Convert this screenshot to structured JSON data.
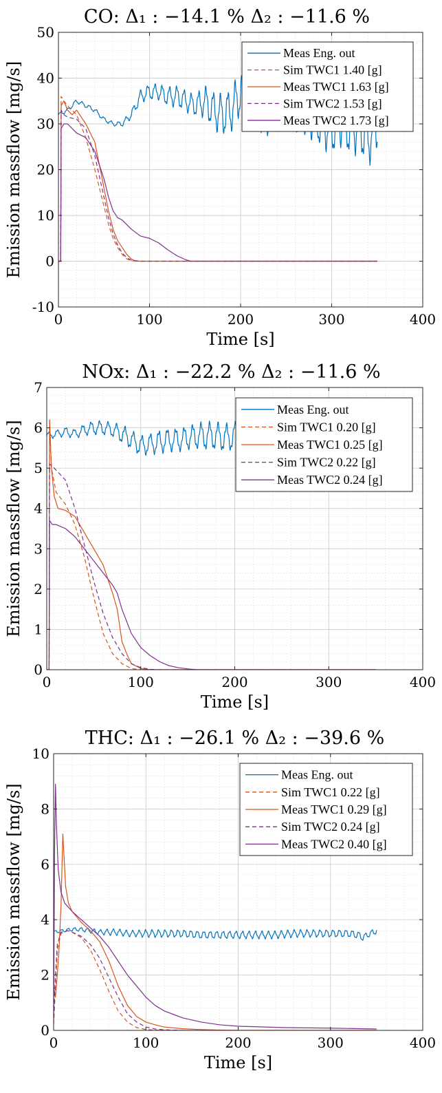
{
  "chart_data": [
    {
      "type": "line",
      "title": "CO: Δ₁ : −14.1 % Δ₂ : −11.6 %",
      "xlabel": "Time [s]",
      "ylabel": "Emission massflow [mg/s]",
      "xlim": [
        0,
        400
      ],
      "ylim": [
        -10,
        50
      ],
      "xticks": [
        "0",
        "100",
        "200",
        "300",
        "400"
      ],
      "yticks": [
        "-10",
        "0",
        "10",
        "20",
        "30",
        "40",
        "50"
      ],
      "grid": true,
      "legend_position": "top-right",
      "series": [
        {
          "name": "Meas Eng. out",
          "color": "#0072BD",
          "style": "solid",
          "x": [
            0,
            10,
            20,
            30,
            40,
            50,
            60,
            70,
            80,
            90,
            100,
            110,
            120,
            130,
            140,
            150,
            160,
            170,
            180,
            190,
            200,
            210,
            220,
            230,
            240,
            250,
            260,
            270,
            280,
            290,
            300,
            310,
            320,
            330,
            340,
            350
          ],
          "y": [
            32,
            33,
            35,
            34,
            33,
            31,
            30,
            30,
            32,
            36,
            37,
            37,
            36,
            36,
            35,
            34,
            35,
            33,
            32,
            33,
            37,
            34,
            33,
            32,
            34,
            33,
            33,
            32,
            31,
            30,
            29,
            31,
            29,
            30,
            27,
            30
          ],
          "amp": [
            0.3,
            0.4,
            0.4,
            0.4,
            0.4,
            0.4,
            0.4,
            0.5,
            0.8,
            1.2,
            1.5,
            1.5,
            1.8,
            2,
            2,
            2,
            3,
            3.5,
            4,
            4,
            4.5,
            4,
            4,
            4,
            4,
            4,
            4,
            4,
            4,
            4.5,
            5,
            5,
            5,
            5.5,
            5.5,
            5
          ],
          "period": 8
        },
        {
          "name": "Sim TWC1 1.40 [g]",
          "color": "#D95319",
          "style": "dashed",
          "x": [
            0,
            2.5,
            3,
            6,
            10,
            20,
            30,
            40,
            50,
            55,
            60,
            65,
            70,
            75,
            80,
            90,
            100,
            350
          ],
          "y": [
            0,
            0,
            36,
            35,
            34,
            32,
            27,
            20,
            12,
            8,
            5,
            3,
            1.5,
            0.5,
            0.1,
            0,
            0,
            0
          ]
        },
        {
          "name": "Meas TWC1 1.63 [g]",
          "color": "#D95319",
          "style": "solid",
          "x": [
            0,
            2.5,
            3,
            6,
            10,
            15,
            20,
            30,
            40,
            45,
            50,
            55,
            60,
            65,
            70,
            75,
            80,
            85,
            90,
            100,
            350
          ],
          "y": [
            0,
            0,
            34,
            35,
            33,
            32,
            33,
            30,
            26,
            21,
            16,
            11,
            7,
            4.5,
            3,
            1.5,
            0.5,
            0,
            0,
            0,
            0
          ]
        },
        {
          "name": "Sim TWC2 1.53 [g]",
          "color": "#7E2F8E",
          "style": "dashed",
          "x": [
            0,
            2.5,
            3,
            6,
            10,
            20,
            30,
            40,
            50,
            55,
            60,
            65,
            70,
            75,
            80,
            90,
            100,
            350
          ],
          "y": [
            0,
            0,
            33,
            32,
            31.5,
            31,
            29,
            23,
            14,
            9.5,
            6,
            3.5,
            1.8,
            0.8,
            0.2,
            0,
            0,
            0
          ]
        },
        {
          "name": "Meas TWC2 1.73 [g]",
          "color": "#7E2F8E",
          "style": "solid",
          "x": [
            0,
            2.5,
            3,
            6,
            10,
            15,
            20,
            30,
            40,
            50,
            55,
            60,
            65,
            70,
            75,
            80,
            90,
            100,
            110,
            120,
            130,
            140,
            145,
            150,
            350
          ],
          "y": [
            0,
            0,
            29,
            30,
            30,
            29,
            28,
            27,
            24,
            18,
            14,
            11,
            9.5,
            9,
            8,
            7,
            5.5,
            5,
            4,
            2.5,
            1.2,
            0.3,
            0,
            0,
            0
          ]
        }
      ]
    },
    {
      "type": "line",
      "title": "NOx: Δ₁ : −22.2 % Δ₂ : −11.6 %",
      "xlabel": "Time [s]",
      "ylabel": "Emission massflow [mg/s]",
      "xlim": [
        0,
        400
      ],
      "ylim": [
        0,
        7
      ],
      "xticks": [
        "0",
        "100",
        "200",
        "300",
        "400"
      ],
      "yticks": [
        "0",
        "1",
        "2",
        "3",
        "4",
        "5",
        "6",
        "7"
      ],
      "grid": true,
      "legend_position": "top-right",
      "series": [
        {
          "name": "Meas Eng. out",
          "color": "#0072BD",
          "style": "solid",
          "x": [
            0,
            10,
            20,
            30,
            40,
            50,
            60,
            70,
            80,
            90,
            100,
            110,
            120,
            130,
            140,
            150,
            160,
            170,
            180,
            190,
            200,
            210,
            220,
            230,
            240,
            250,
            260,
            270,
            280,
            290,
            300,
            310,
            320,
            330,
            340,
            350
          ],
          "y": [
            5.8,
            5.85,
            5.9,
            5.85,
            5.95,
            6.0,
            6.0,
            5.95,
            5.85,
            5.7,
            5.55,
            5.6,
            5.65,
            5.7,
            5.7,
            5.75,
            5.8,
            5.8,
            5.8,
            5.75,
            5.8,
            5.8,
            5.8,
            5.75,
            5.8,
            5.85,
            5.8,
            5.8,
            5.85,
            5.85,
            5.85,
            5.8,
            5.8,
            5.85,
            5.85,
            5.8
          ],
          "amp": [
            0.08,
            0.08,
            0.1,
            0.1,
            0.12,
            0.15,
            0.15,
            0.15,
            0.2,
            0.2,
            0.22,
            0.22,
            0.25,
            0.25,
            0.25,
            0.25,
            0.28,
            0.3,
            0.3,
            0.3,
            0.3,
            0.3,
            0.3,
            0.3,
            0.3,
            0.3,
            0.3,
            0.3,
            0.3,
            0.3,
            0.3,
            0.3,
            0.3,
            0.3,
            0.3,
            0.3
          ],
          "period": 9
        },
        {
          "name": "Sim TWC1 0.20 [g]",
          "color": "#D95319",
          "style": "dashed",
          "x": [
            0,
            2.5,
            3,
            5,
            10,
            20,
            30,
            40,
            50,
            60,
            70,
            80,
            90,
            100,
            110,
            350
          ],
          "y": [
            0,
            0,
            6.2,
            5.0,
            4.4,
            4.1,
            3.6,
            2.8,
            1.8,
            0.9,
            0.4,
            0.15,
            0.03,
            0,
            0,
            0
          ]
        },
        {
          "name": "Meas TWC1 0.25 [g]",
          "color": "#D95319",
          "style": "solid",
          "x": [
            0,
            2.5,
            3,
            5,
            8,
            12,
            20,
            30,
            40,
            50,
            60,
            70,
            75,
            80,
            85,
            90,
            100,
            110,
            350
          ],
          "y": [
            0,
            0,
            6.2,
            5.0,
            4.3,
            4.0,
            3.95,
            3.8,
            3.4,
            3.0,
            2.6,
            1.9,
            1.5,
            0.7,
            0.4,
            0.15,
            0.03,
            0,
            0
          ]
        },
        {
          "name": "Sim TWC2 0.22 [g]",
          "color": "#7E2F8E",
          "style": "dashed",
          "x": [
            0,
            2.5,
            3,
            6,
            10,
            20,
            30,
            40,
            50,
            60,
            70,
            80,
            90,
            100,
            110,
            120,
            350
          ],
          "y": [
            0,
            0,
            5.1,
            5.05,
            4.95,
            4.7,
            4.0,
            3.1,
            2.2,
            1.4,
            0.8,
            0.4,
            0.15,
            0.05,
            0.01,
            0,
            0
          ]
        },
        {
          "name": "Meas TWC2 0.24 [g]",
          "color": "#7E2F8E",
          "style": "solid",
          "x": [
            0,
            2.5,
            3,
            6,
            10,
            20,
            30,
            40,
            50,
            60,
            70,
            75,
            80,
            90,
            100,
            110,
            120,
            130,
            140,
            150,
            160,
            350
          ],
          "y": [
            0,
            0,
            3.7,
            3.6,
            3.6,
            3.5,
            3.3,
            3.0,
            2.7,
            2.4,
            2.1,
            1.9,
            1.5,
            0.9,
            0.55,
            0.35,
            0.2,
            0.1,
            0.05,
            0.02,
            0,
            0
          ]
        }
      ]
    },
    {
      "type": "line",
      "title": "THC: Δ₁ : −26.1 % Δ₂ : −39.6 %",
      "xlabel": "Time [s]",
      "ylabel": "Emission massflow [mg/s]",
      "xlim": [
        0,
        400
      ],
      "ylim": [
        0,
        10
      ],
      "xticks": [
        "0",
        "100",
        "200",
        "300",
        "400"
      ],
      "yticks": [
        "0",
        "2",
        "4",
        "6",
        "8",
        "10"
      ],
      "grid": true,
      "legend_position": "top-right",
      "series": [
        {
          "name": "Meas Eng. out",
          "color": "#0072BD",
          "style": "solid",
          "x": [
            0,
            10,
            20,
            30,
            40,
            50,
            60,
            70,
            80,
            90,
            100,
            120,
            140,
            160,
            180,
            200,
            220,
            240,
            260,
            280,
            300,
            320,
            330,
            335,
            340,
            350
          ],
          "y": [
            3.55,
            3.6,
            3.65,
            3.65,
            3.6,
            3.55,
            3.55,
            3.55,
            3.5,
            3.5,
            3.5,
            3.5,
            3.5,
            3.45,
            3.45,
            3.45,
            3.45,
            3.45,
            3.5,
            3.5,
            3.5,
            3.5,
            3.45,
            3.35,
            3.45,
            3.6
          ],
          "amp": [
            0.05,
            0.05,
            0.06,
            0.06,
            0.08,
            0.08,
            0.1,
            0.1,
            0.1,
            0.1,
            0.12,
            0.12,
            0.12,
            0.12,
            0.12,
            0.12,
            0.12,
            0.12,
            0.12,
            0.12,
            0.12,
            0.12,
            0.12,
            0.1,
            0.1,
            0.1
          ],
          "period": 7
        },
        {
          "name": "Sim TWC1 0.22 [g]",
          "color": "#D95319",
          "style": "dashed",
          "x": [
            0,
            2,
            4,
            8,
            15,
            20,
            30,
            40,
            50,
            60,
            70,
            80,
            90,
            100,
            110,
            130,
            350
          ],
          "y": [
            0.2,
            1.5,
            2.9,
            3.5,
            3.6,
            3.55,
            3.35,
            2.9,
            2.2,
            1.4,
            0.7,
            0.3,
            0.1,
            0.03,
            0.01,
            0,
            0
          ]
        },
        {
          "name": "Meas TWC1 0.29 [g]",
          "color": "#D95319",
          "style": "solid",
          "x": [
            0,
            2,
            4,
            6,
            8,
            10,
            13,
            16,
            20,
            30,
            40,
            50,
            60,
            70,
            80,
            90,
            100,
            110,
            120,
            140,
            160,
            180,
            200,
            350
          ],
          "y": [
            1.6,
            1.2,
            2.0,
            3.0,
            4.5,
            7.1,
            5.2,
            4.6,
            4.3,
            3.9,
            3.6,
            3.2,
            2.5,
            1.6,
            0.9,
            0.5,
            0.3,
            0.2,
            0.12,
            0.06,
            0.03,
            0.01,
            0,
            0
          ]
        },
        {
          "name": "Sim TWC2 0.24 [g]",
          "color": "#7E2F8E",
          "style": "dashed",
          "x": [
            0,
            2,
            4,
            8,
            15,
            20,
            30,
            40,
            50,
            60,
            70,
            80,
            90,
            100,
            110,
            120,
            140,
            350
          ],
          "y": [
            0.5,
            2.0,
            3.1,
            3.55,
            3.6,
            3.55,
            3.4,
            3.1,
            2.6,
            1.9,
            1.2,
            0.6,
            0.3,
            0.12,
            0.05,
            0.02,
            0,
            0
          ]
        },
        {
          "name": "Meas TWC2 0.40 [g]",
          "color": "#7E2F8E",
          "style": "solid",
          "x": [
            0,
            1,
            2,
            3,
            5,
            8,
            12,
            20,
            30,
            40,
            50,
            60,
            70,
            80,
            90,
            100,
            110,
            120,
            140,
            160,
            180,
            200,
            250,
            300,
            350
          ],
          "y": [
            0.2,
            6.5,
            8.9,
            7.5,
            5.8,
            5.0,
            4.6,
            4.3,
            4.0,
            3.7,
            3.4,
            3.0,
            2.5,
            2.0,
            1.6,
            1.2,
            0.9,
            0.7,
            0.45,
            0.3,
            0.2,
            0.15,
            0.1,
            0.08,
            0.05
          ]
        }
      ]
    }
  ]
}
